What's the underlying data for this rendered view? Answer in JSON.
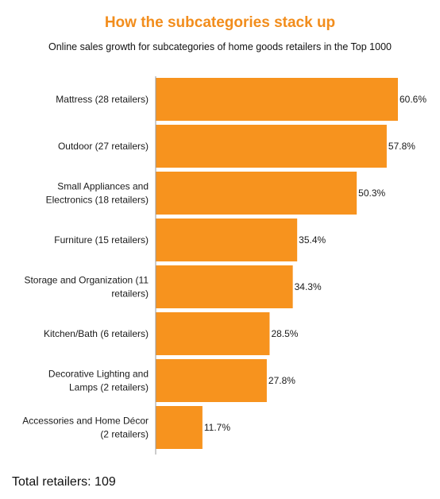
{
  "title": "How the subcategories stack up",
  "subtitle": "Online sales growth for subcategories of home goods retailers in the Top 1000",
  "footer": "Total retailers: 109",
  "colors": {
    "bar": "#f7931e",
    "title": "#f28d1c",
    "axis": "#999999"
  },
  "chart_data": {
    "type": "bar",
    "orientation": "horizontal",
    "categories": [
      [
        "Mattress (28 retailers)"
      ],
      [
        "Outdoor (27 retailers)"
      ],
      [
        "Small Appliances and",
        "Electronics (18 retailers)"
      ],
      [
        "Furniture (15 retailers)"
      ],
      [
        "Storage and Organization (11",
        "retailers)"
      ],
      [
        "Kitchen/Bath (6 retailers)"
      ],
      [
        "Decorative Lighting and",
        "Lamps (2 retailers)"
      ],
      [
        "Accessories and Home Décor",
        "(2 retailers)"
      ]
    ],
    "values": [
      60.6,
      57.8,
      50.3,
      35.4,
      34.3,
      28.5,
      27.8,
      11.7
    ],
    "value_labels": [
      "60.6%",
      "57.8%",
      "50.3%",
      "35.4%",
      "34.3%",
      "28.5%",
      "27.8%",
      "11.7%"
    ],
    "xlim": [
      0,
      62
    ]
  }
}
